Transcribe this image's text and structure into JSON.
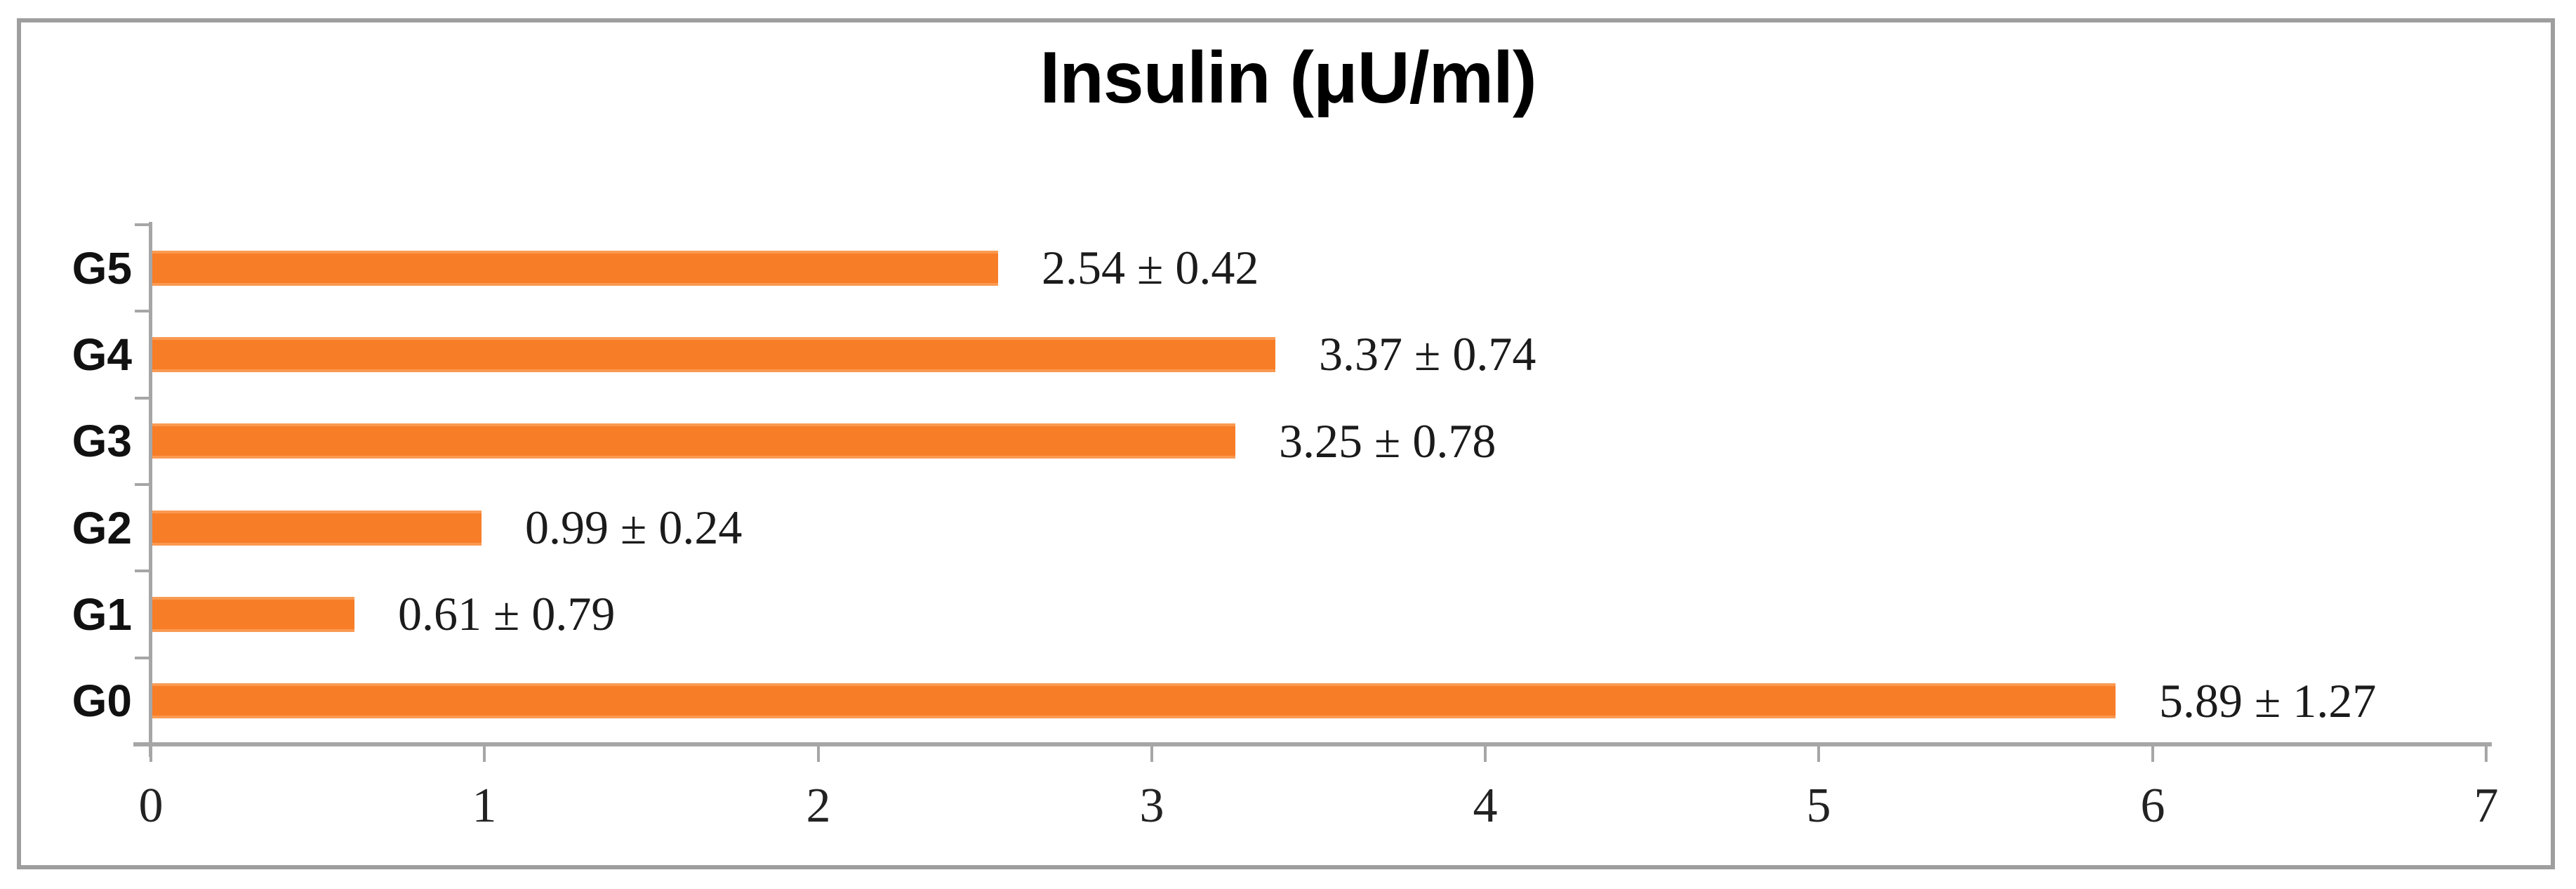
{
  "chart_data": {
    "type": "bar",
    "orientation": "horizontal",
    "title": "Insulin (μU/ml)",
    "categories": [
      "G5",
      "G4",
      "G3",
      "G2",
      "G1",
      "G0"
    ],
    "values": [
      2.54,
      3.37,
      3.25,
      0.99,
      0.61,
      5.89
    ],
    "errors": [
      0.42,
      0.74,
      0.78,
      0.24,
      0.79,
      1.27
    ],
    "data_labels": [
      "2.54 ± 0.42",
      "3.37 ± 0.74",
      "3.25 ± 0.78",
      "0.99 ± 0.24",
      "0.61 ± 0.79",
      "5.89 ± 1.27"
    ],
    "xlabel": "",
    "ylabel": "",
    "xlim": [
      0,
      7
    ],
    "x_ticks": [
      "0",
      "1",
      "2",
      "3",
      "4",
      "5",
      "6",
      "7"
    ],
    "grid": false,
    "legend": false,
    "bar_color": "#f87d27",
    "bar_edge_color": "#fa9a52",
    "axis_color": "#a6a6a6",
    "frame_border_color": "#9e9e9e",
    "label_text_color": "#1b1b1b"
  }
}
